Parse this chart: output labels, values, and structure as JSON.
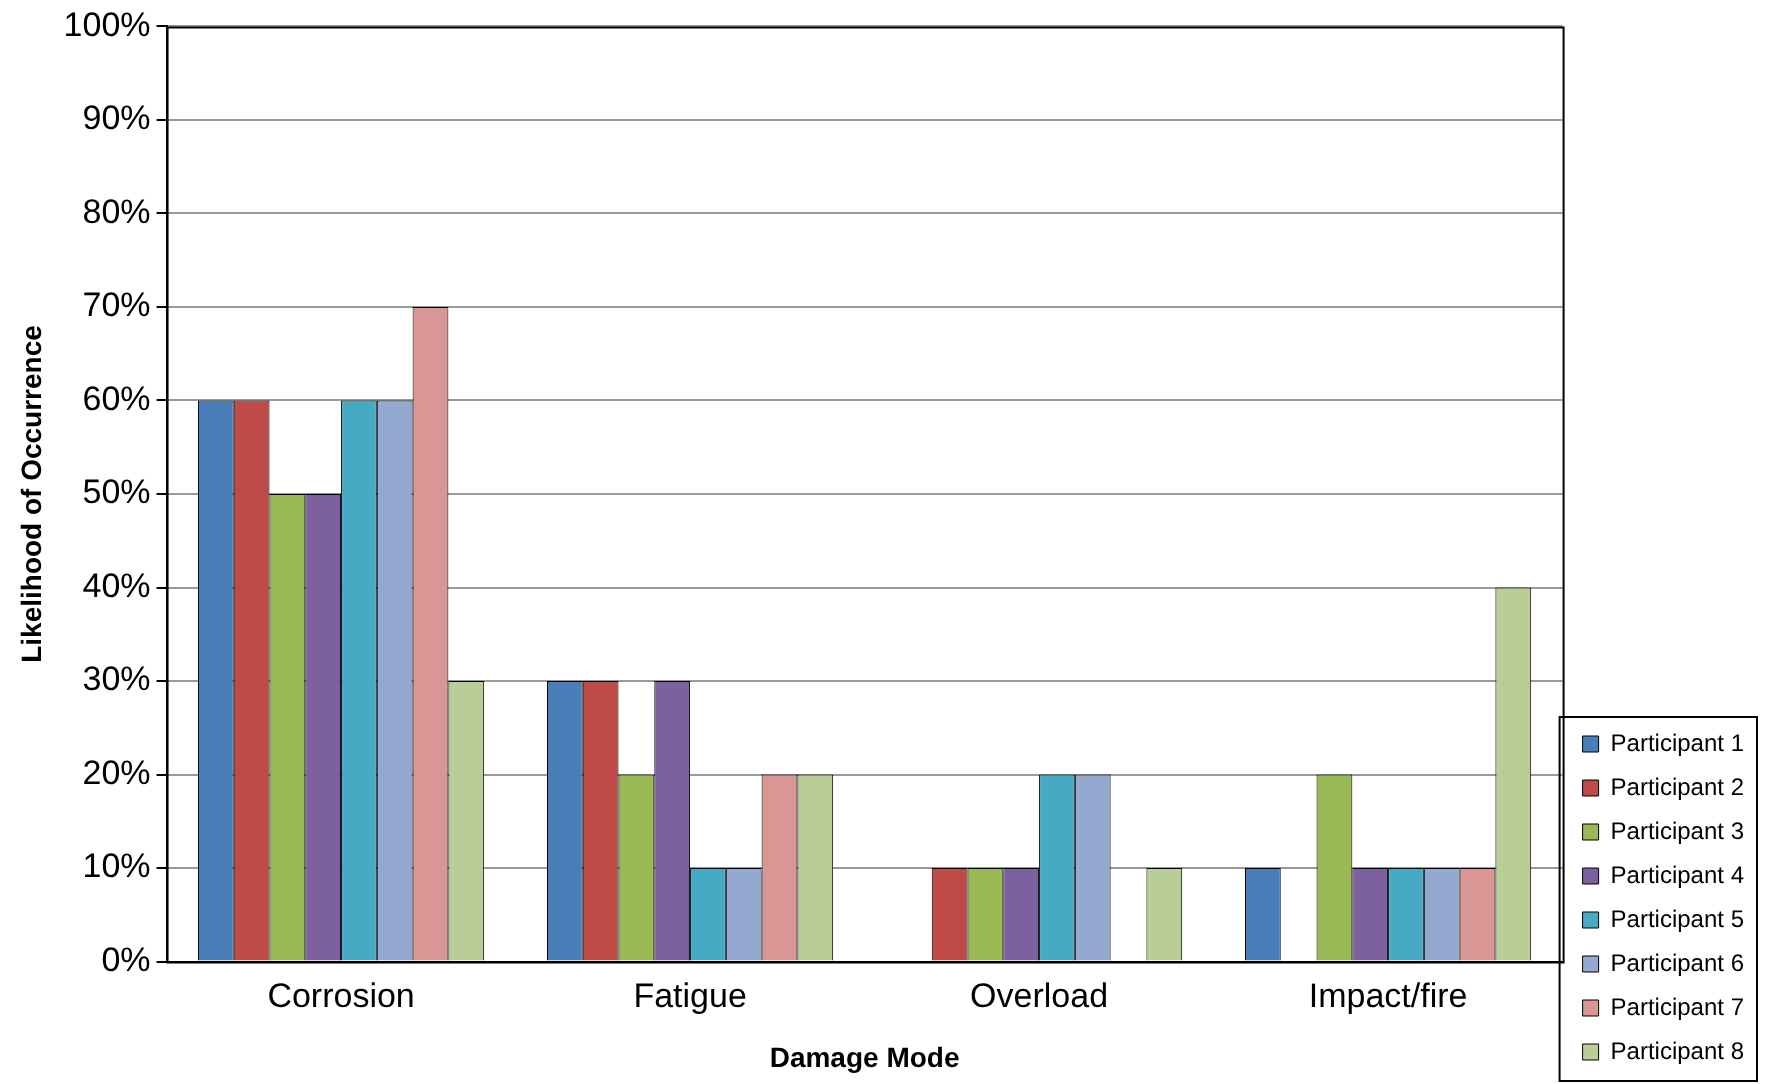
{
  "chart_data": {
    "type": "bar",
    "xlabel": "Damage Mode",
    "ylabel": "Likelihood of Occurrence",
    "categories": [
      "Corrosion",
      "Fatigue",
      "Overload",
      "Impact/fire"
    ],
    "series": [
      {
        "name": "Participant 1",
        "color": "#4a7ebb",
        "values": [
          60,
          30,
          0,
          10
        ]
      },
      {
        "name": "Participant 2",
        "color": "#be4b48",
        "values": [
          60,
          30,
          10,
          0
        ]
      },
      {
        "name": "Participant 3",
        "color": "#98b954",
        "values": [
          50,
          20,
          10,
          20
        ]
      },
      {
        "name": "Participant 4",
        "color": "#7d60a0",
        "values": [
          50,
          30,
          10,
          10
        ]
      },
      {
        "name": "Participant 5",
        "color": "#46aac5",
        "values": [
          60,
          10,
          20,
          10
        ]
      },
      {
        "name": "Participant 6",
        "color": "#93a9d0",
        "values": [
          60,
          10,
          20,
          10
        ]
      },
      {
        "name": "Participant 7",
        "color": "#d99694",
        "values": [
          70,
          20,
          0,
          10
        ]
      },
      {
        "name": "Participant 8",
        "color": "#b9cd96",
        "values": [
          30,
          20,
          10,
          40
        ]
      }
    ],
    "ylim": [
      0,
      100
    ],
    "yticks": [
      {
        "value": 0,
        "label": "0%"
      },
      {
        "value": 10,
        "label": "10%"
      },
      {
        "value": 20,
        "label": "20%"
      },
      {
        "value": 30,
        "label": "30%"
      },
      {
        "value": 40,
        "label": "40%"
      },
      {
        "value": 50,
        "label": "50%"
      },
      {
        "value": 60,
        "label": "60%"
      },
      {
        "value": 70,
        "label": "70%"
      },
      {
        "value": 80,
        "label": "80%"
      },
      {
        "value": 90,
        "label": "90%"
      },
      {
        "value": 100,
        "label": "100%"
      }
    ],
    "grid": "y",
    "legend": "right"
  }
}
